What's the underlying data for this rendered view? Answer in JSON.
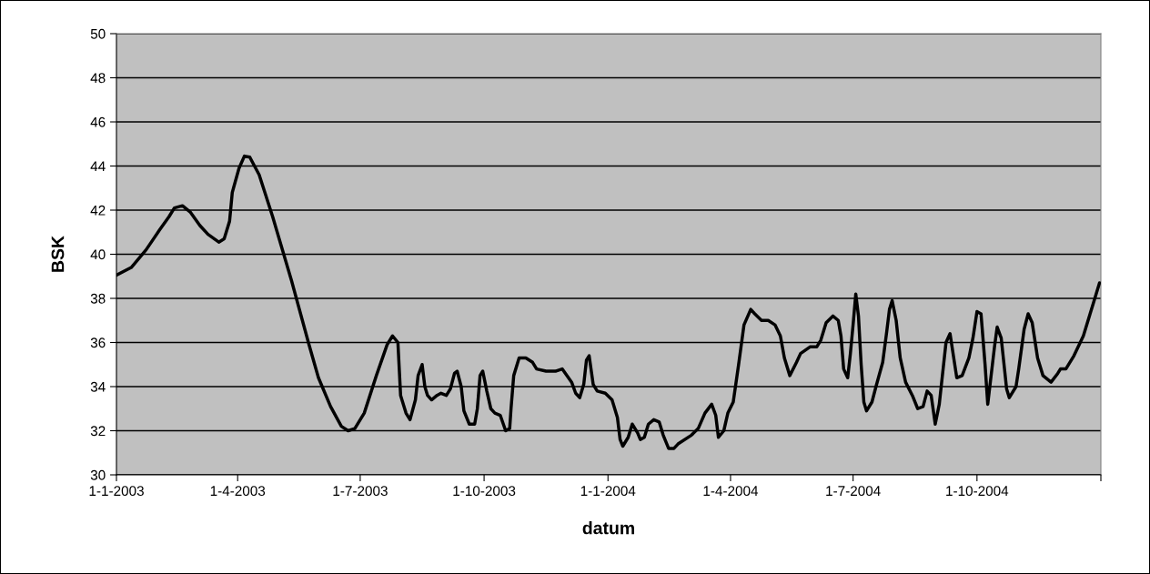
{
  "chart_data": {
    "type": "line",
    "xlabel": "datum",
    "ylabel": "BSK",
    "x": [
      "2003-01-01",
      "2003-01-12",
      "2003-01-23",
      "2003-02-02",
      "2003-02-09",
      "2003-02-13",
      "2003-02-19",
      "2003-02-25",
      "2003-03-04",
      "2003-03-10",
      "2003-03-18",
      "2003-03-22",
      "2003-03-26",
      "2003-03-28",
      "2003-04-02",
      "2003-04-06",
      "2003-04-10",
      "2003-04-17",
      "2003-04-27",
      "2003-05-11",
      "2003-05-24",
      "2003-05-31",
      "2003-06-09",
      "2003-06-17",
      "2003-06-22",
      "2003-06-27",
      "2003-07-04",
      "2003-07-13",
      "2003-07-21",
      "2003-07-25",
      "2003-07-29",
      "2003-07-31",
      "2003-08-04",
      "2003-08-07",
      "2003-08-11",
      "2003-08-13",
      "2003-08-16",
      "2003-08-18",
      "2003-08-20",
      "2003-08-23",
      "2003-08-27",
      "2003-08-30",
      "2003-09-03",
      "2003-09-06",
      "2003-09-09",
      "2003-09-11",
      "2003-09-14",
      "2003-09-16",
      "2003-09-20",
      "2003-09-24",
      "2003-09-26",
      "2003-09-28",
      "2003-09-30",
      "2003-10-03",
      "2003-10-06",
      "2003-10-09",
      "2003-10-13",
      "2003-10-17",
      "2003-10-20",
      "2003-10-21",
      "2003-10-23",
      "2003-10-27",
      "2003-11-01",
      "2003-11-06",
      "2003-11-09",
      "2003-11-16",
      "2003-11-23",
      "2003-11-28",
      "2003-12-05",
      "2003-12-08",
      "2003-12-11",
      "2003-12-14",
      "2003-12-16",
      "2003-12-18",
      "2003-12-21",
      "2003-12-24",
      "2003-12-30",
      "2004-01-04",
      "2004-01-08",
      "2004-01-10",
      "2004-01-12",
      "2004-01-16",
      "2004-01-19",
      "2004-01-23",
      "2004-01-25",
      "2004-01-28",
      "2004-01-31",
      "2004-02-04",
      "2004-02-08",
      "2004-02-11",
      "2004-02-15",
      "2004-02-19",
      "2004-02-22",
      "2004-03-03",
      "2004-03-08",
      "2004-03-13",
      "2004-03-18",
      "2004-03-21",
      "2004-03-23",
      "2004-03-27",
      "2004-03-30",
      "2004-04-03",
      "2004-04-07",
      "2004-04-11",
      "2004-04-16",
      "2004-04-19",
      "2004-04-24",
      "2004-04-29",
      "2004-05-04",
      "2004-05-08",
      "2004-05-11",
      "2004-05-15",
      "2004-05-20",
      "2004-05-23",
      "2004-05-30",
      "2004-06-04",
      "2004-06-07",
      "2004-06-11",
      "2004-06-16",
      "2004-06-20",
      "2004-06-22",
      "2004-06-24",
      "2004-06-27",
      "2004-06-29",
      "2004-07-01",
      "2004-07-03",
      "2004-07-05",
      "2004-07-07",
      "2004-07-09",
      "2004-07-11",
      "2004-07-15",
      "2004-07-18",
      "2004-07-23",
      "2004-07-26",
      "2004-07-28",
      "2004-07-30",
      "2004-08-02",
      "2004-08-05",
      "2004-08-09",
      "2004-08-14",
      "2004-08-18",
      "2004-08-22",
      "2004-08-25",
      "2004-08-28",
      "2004-08-31",
      "2004-09-03",
      "2004-09-08",
      "2004-09-11",
      "2004-09-14",
      "2004-09-16",
      "2004-09-20",
      "2004-09-25",
      "2004-09-28",
      "2004-10-01",
      "2004-10-04",
      "2004-10-07",
      "2004-10-09",
      "2004-10-14",
      "2004-10-16",
      "2004-10-19",
      "2004-10-23",
      "2004-10-25",
      "2004-10-30",
      "2004-11-01",
      "2004-11-05",
      "2004-11-08",
      "2004-11-11",
      "2004-11-15",
      "2004-11-19",
      "2004-11-25",
      "2004-11-30",
      "2004-12-02",
      "2004-12-06",
      "2004-12-12",
      "2004-12-19",
      "2004-12-24",
      "2004-12-27",
      "2004-12-31"
    ],
    "series": [
      {
        "color": "#000000",
        "values": [
          39.05,
          39.4,
          40.2,
          41.1,
          41.7,
          42.1,
          42.2,
          41.9,
          41.3,
          40.9,
          40.55,
          40.7,
          41.5,
          42.8,
          43.9,
          44.45,
          44.4,
          43.6,
          41.7,
          38.8,
          35.9,
          34.4,
          33.1,
          32.2,
          32.0,
          32.1,
          32.8,
          34.5,
          35.9,
          36.3,
          36.0,
          33.6,
          32.8,
          32.5,
          33.4,
          34.5,
          35.0,
          34.0,
          33.6,
          33.4,
          33.6,
          33.7,
          33.6,
          33.9,
          34.6,
          34.7,
          34.0,
          32.9,
          32.3,
          32.3,
          33.0,
          34.5,
          34.7,
          33.8,
          33.0,
          32.8,
          32.7,
          32.0,
          32.1,
          33.0,
          34.5,
          35.3,
          35.3,
          35.1,
          34.8,
          34.7,
          34.7,
          34.8,
          34.2,
          33.7,
          33.5,
          34.1,
          35.2,
          35.4,
          34.1,
          33.8,
          33.7,
          33.4,
          32.6,
          31.6,
          31.3,
          31.7,
          32.3,
          31.9,
          31.6,
          31.7,
          32.3,
          32.5,
          32.4,
          31.8,
          31.2,
          31.2,
          31.4,
          31.8,
          32.1,
          32.8,
          33.2,
          32.7,
          31.7,
          32.0,
          32.8,
          33.3,
          35.0,
          36.8,
          37.5,
          37.3,
          37.0,
          37.0,
          36.8,
          36.3,
          35.3,
          34.5,
          35.1,
          35.5,
          35.8,
          35.8,
          36.1,
          36.9,
          37.2,
          37.0,
          36.3,
          34.8,
          34.4,
          35.5,
          36.8,
          38.2,
          37.2,
          35.0,
          33.3,
          32.9,
          33.3,
          34.0,
          35.1,
          36.5,
          37.5,
          37.9,
          37.0,
          35.3,
          34.2,
          33.6,
          33.0,
          33.1,
          33.8,
          33.6,
          32.3,
          33.2,
          36.0,
          36.4,
          35.2,
          34.4,
          34.5,
          35.3,
          36.2,
          37.4,
          37.3,
          35.0,
          33.2,
          35.8,
          36.7,
          36.2,
          33.9,
          33.5,
          34.0,
          34.8,
          36.6,
          37.3,
          36.9,
          35.3,
          34.5,
          34.2,
          34.6,
          34.8,
          34.8,
          35.4,
          36.3,
          37.3,
          37.9,
          38.7
        ]
      }
    ],
    "xlim": [
      "2003-01-01",
      "2005-01-01"
    ],
    "xticks": [
      {
        "value": "2003-01-01",
        "label": "1-1-2003"
      },
      {
        "value": "2003-04-01",
        "label": "1-4-2003"
      },
      {
        "value": "2003-07-01",
        "label": "1-7-2003"
      },
      {
        "value": "2003-10-01",
        "label": "1-10-2003"
      },
      {
        "value": "2004-01-01",
        "label": "1-1-2004"
      },
      {
        "value": "2004-04-01",
        "label": "1-4-2004"
      },
      {
        "value": "2004-07-01",
        "label": "1-7-2004"
      },
      {
        "value": "2004-10-01",
        "label": "1-10-2004"
      },
      {
        "value": "2005-01-01",
        "label": null
      }
    ],
    "ylim": [
      30,
      50
    ],
    "yticks": [
      30,
      32,
      34,
      36,
      38,
      40,
      42,
      44,
      46,
      48,
      50
    ],
    "grid": "y",
    "marker": "none",
    "line_style": "solid"
  }
}
